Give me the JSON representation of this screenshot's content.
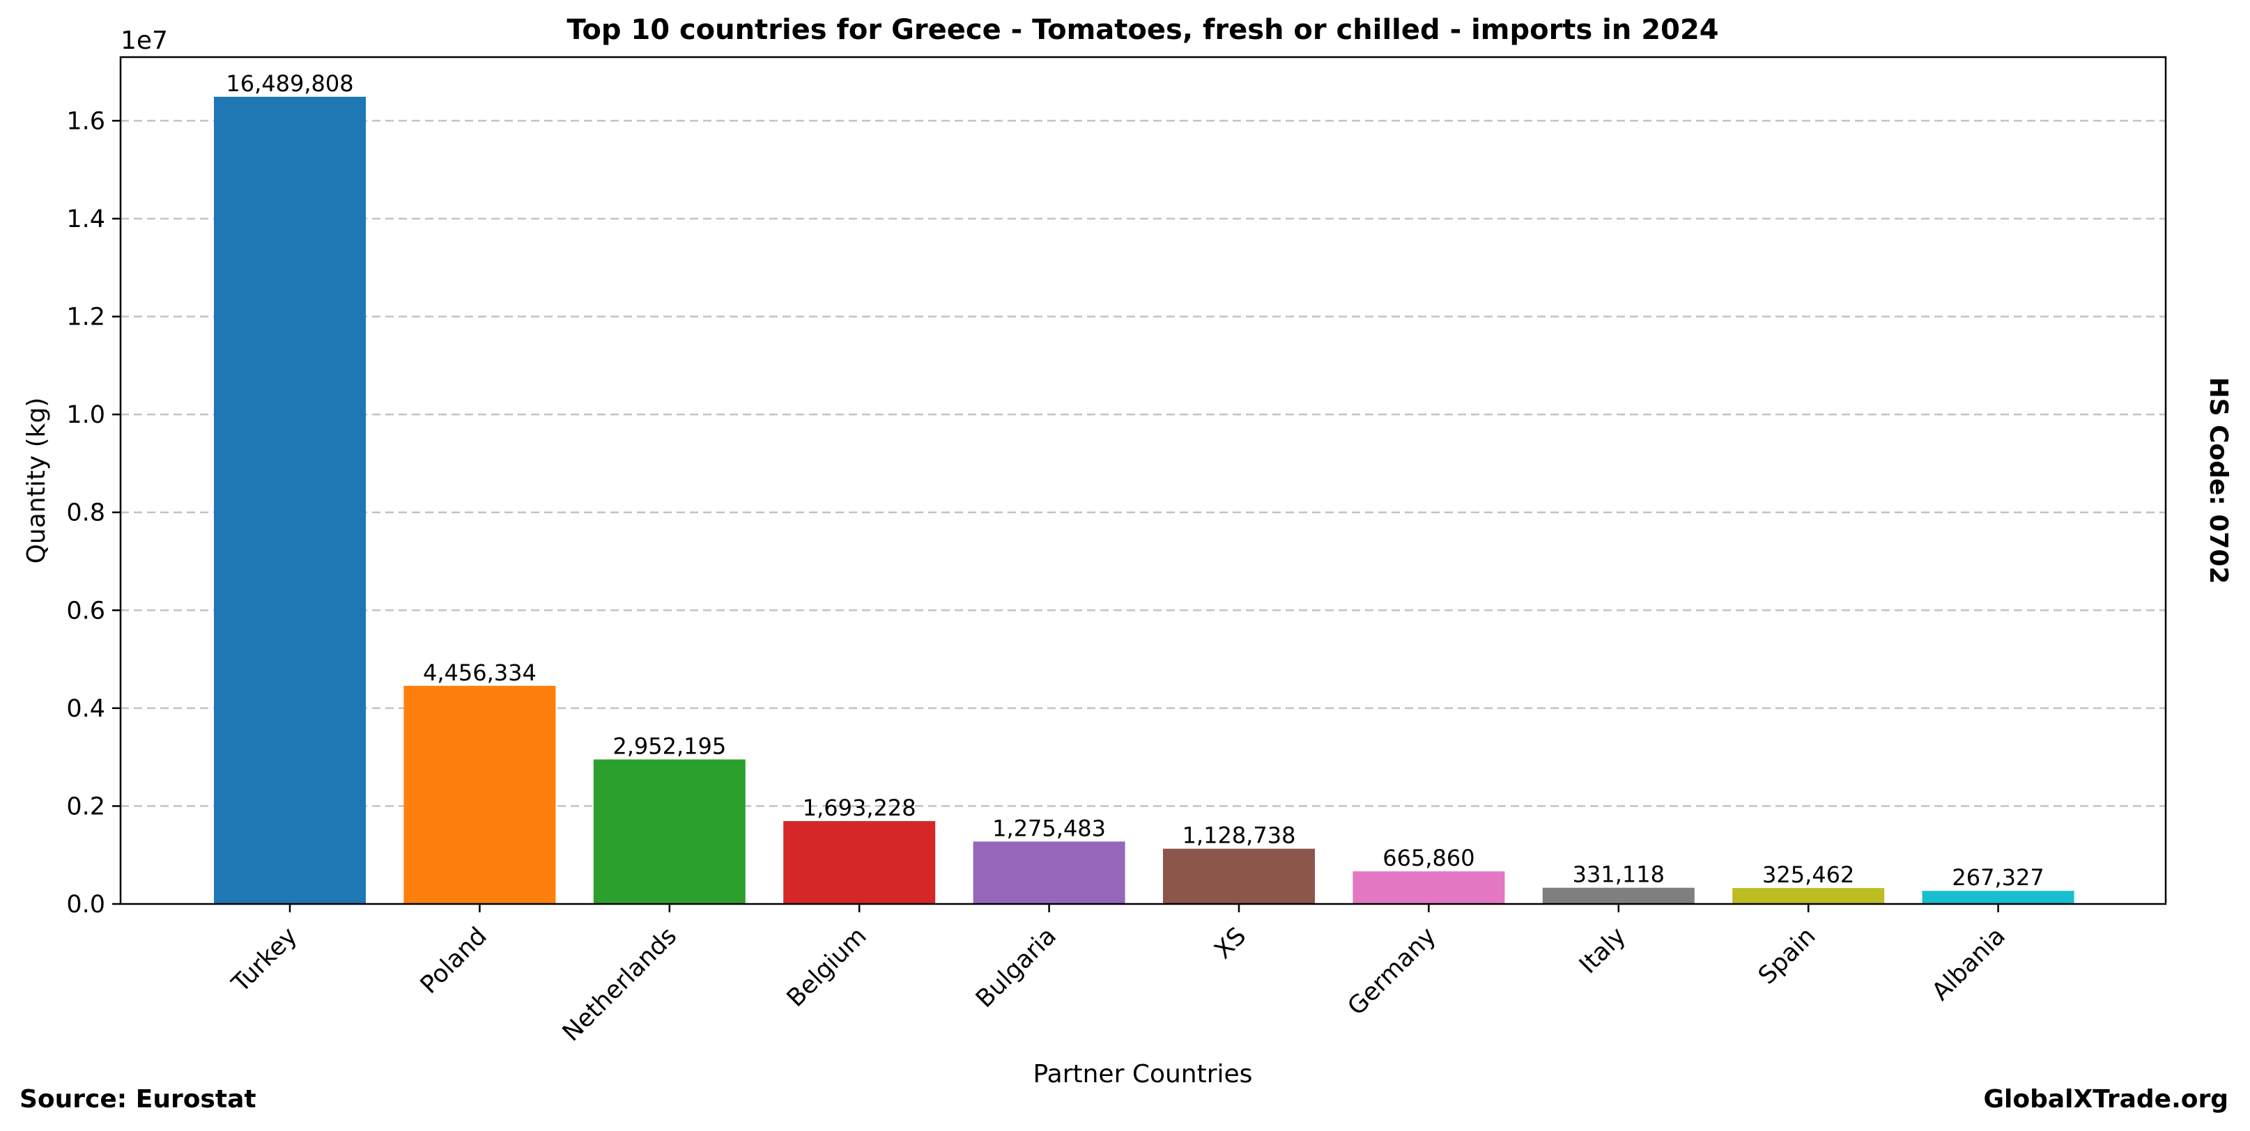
{
  "chart_data": {
    "type": "bar",
    "title": "Top 10 countries for Greece - Tomatoes, fresh or chilled - imports in 2024",
    "xlabel": "Partner Countries",
    "ylabel": "Quantity (kg)",
    "y_offset_label": "1e7",
    "categories": [
      "Turkey",
      "Poland",
      "Netherlands",
      "Belgium",
      "Bulgaria",
      "XS",
      "Germany",
      "Italy",
      "Spain",
      "Albania"
    ],
    "values": [
      16489808,
      4456334,
      2952195,
      1693228,
      1275483,
      1128738,
      665860,
      331118,
      325462,
      267327
    ],
    "value_labels": [
      "16,489,808",
      "4,456,334",
      "2,952,195",
      "1,693,228",
      "1,275,483",
      "1,128,738",
      "665,860",
      "331,118",
      "325,462",
      "267,327"
    ],
    "colors": [
      "#1f77b4",
      "#ff7f0e",
      "#2ca02c",
      "#d62728",
      "#9467bd",
      "#8c564b",
      "#e377c2",
      "#7f7f7f",
      "#bcbd22",
      "#17becf"
    ],
    "ylim": [
      0,
      17300000
    ],
    "yticks": [
      0,
      2000000,
      4000000,
      6000000,
      8000000,
      10000000,
      12000000,
      14000000,
      16000000
    ],
    "ytick_labels": [
      "0.0",
      "0.2",
      "0.4",
      "0.6",
      "0.8",
      "1.0",
      "1.2",
      "1.4",
      "1.6"
    ],
    "grid": "horizontal dashed",
    "x_tick_rotation": "45 degrees"
  },
  "side_note": "HS Code: 0702",
  "footer": {
    "source": "Source: Eurostat",
    "brand": "GlobalXTrade.org"
  }
}
